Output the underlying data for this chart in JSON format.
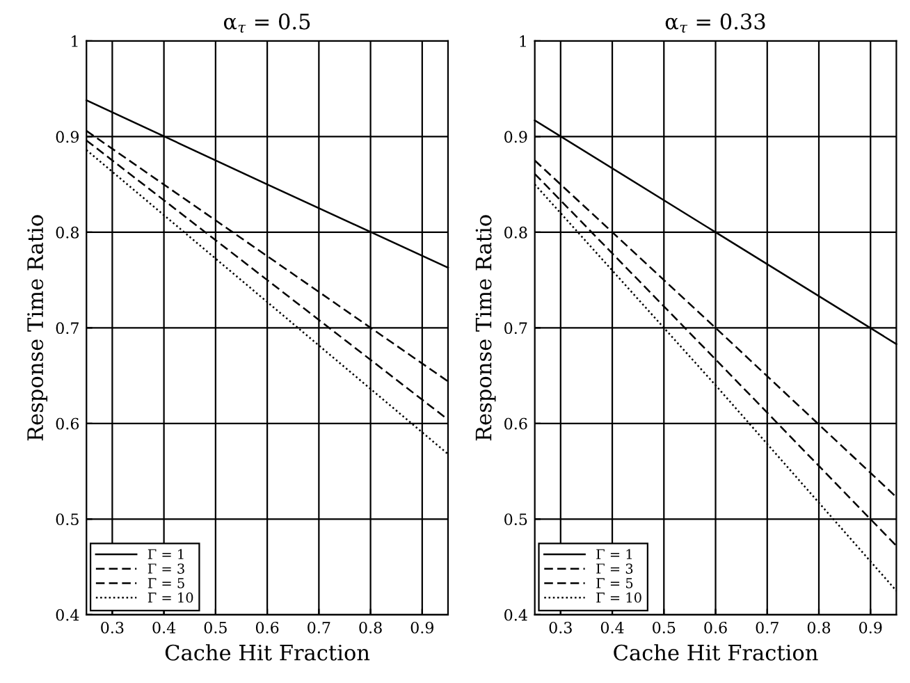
{
  "chart_data": [
    {
      "type": "line",
      "title": "α$_{τ}$ = 0.5",
      "xlabel": "Cache Hit Fraction",
      "ylabel": "Response Time Ratio",
      "series": [
        {
          "name": "Γ = 1",
          "color": "#000000",
          "line_style": "solid",
          "x": [
            0.25,
            0.6,
            0.95
          ],
          "values": [
            0.938,
            0.85,
            0.763
          ]
        },
        {
          "name": "Γ = 3",
          "color": "#000000",
          "line_style": "dashed",
          "x": [
            0.25,
            0.6,
            0.95
          ],
          "values": [
            0.906,
            0.775,
            0.644
          ]
        },
        {
          "name": "Γ = 5",
          "color": "#000000",
          "line_style": "dashed",
          "x": [
            0.25,
            0.6,
            0.95
          ],
          "values": [
            0.896,
            0.75,
            0.604
          ]
        },
        {
          "name": "Γ = 10",
          "color": "#000000",
          "line_style": "dotted",
          "x": [
            0.25,
            0.6,
            0.95
          ],
          "values": [
            0.886,
            0.727,
            0.568
          ]
        }
      ],
      "xlim": [
        0.25,
        0.95
      ],
      "xticks": [
        0.3,
        0.4,
        0.5,
        0.6,
        0.7,
        0.8,
        0.9
      ],
      "ylim": [
        0.4,
        1
      ],
      "yticks": [
        0.4,
        0.5,
        0.6,
        0.7,
        0.8,
        0.9,
        1
      ],
      "grid": true,
      "legend": "bottom left",
      "marker": "none"
    },
    {
      "type": "line",
      "title": "α$_{τ}$ = 0.33",
      "xlabel": "Cache Hit Fraction",
      "ylabel": "Response Time Ratio",
      "series": [
        {
          "name": "Γ = 1",
          "color": "#000000",
          "line_style": "solid",
          "x": [
            0.25,
            0.6,
            0.95
          ],
          "values": [
            0.917,
            0.8,
            0.683
          ]
        },
        {
          "name": "Γ = 3",
          "color": "#000000",
          "line_style": "dashed",
          "x": [
            0.25,
            0.6,
            0.95
          ],
          "values": [
            0.875,
            0.7,
            0.523
          ]
        },
        {
          "name": "Γ = 5",
          "color": "#000000",
          "line_style": "dashed",
          "x": [
            0.25,
            0.6,
            0.95
          ],
          "values": [
            0.861,
            0.667,
            0.472
          ]
        },
        {
          "name": "Γ = 10",
          "color": "#000000",
          "line_style": "dotted",
          "x": [
            0.25,
            0.6,
            0.95
          ],
          "values": [
            0.85,
            0.64,
            0.425
          ]
        }
      ],
      "xlim": [
        0.25,
        0.95
      ],
      "xticks": [
        0.3,
        0.4,
        0.5,
        0.6,
        0.7,
        0.8,
        0.9
      ],
      "ylim": [
        0.4,
        1
      ],
      "yticks": [
        0.4,
        0.5,
        0.6,
        0.7,
        0.8,
        0.9,
        1
      ],
      "grid": true,
      "legend": "bottom left",
      "marker": "none"
    }
  ]
}
